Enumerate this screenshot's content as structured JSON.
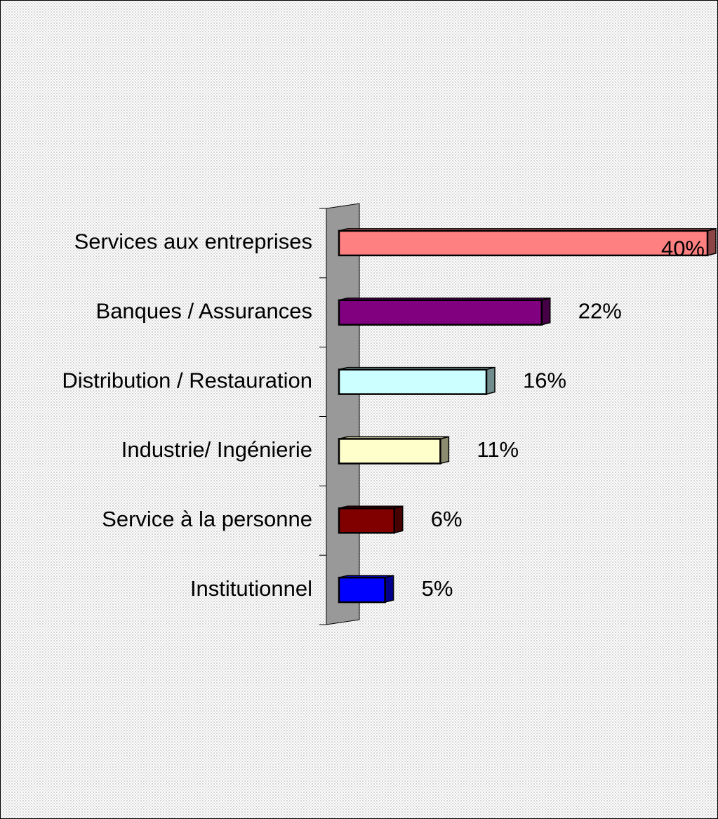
{
  "chart_data": {
    "type": "bar",
    "orientation": "horizontal",
    "categories": [
      "Services aux entreprises",
      "Banques / Assurances",
      "Distribution / Restauration",
      "Industrie/ Ingénierie",
      "Service à la personne",
      "Institutionnel"
    ],
    "values": [
      40,
      22,
      16,
      11,
      6,
      5
    ],
    "value_labels": [
      "40%",
      "22%",
      "16%",
      "11%",
      "6%",
      "5%"
    ],
    "colors": [
      "#ff8080",
      "#800080",
      "#ccffff",
      "#ffffcc",
      "#800000",
      "#0000ff"
    ]
  }
}
